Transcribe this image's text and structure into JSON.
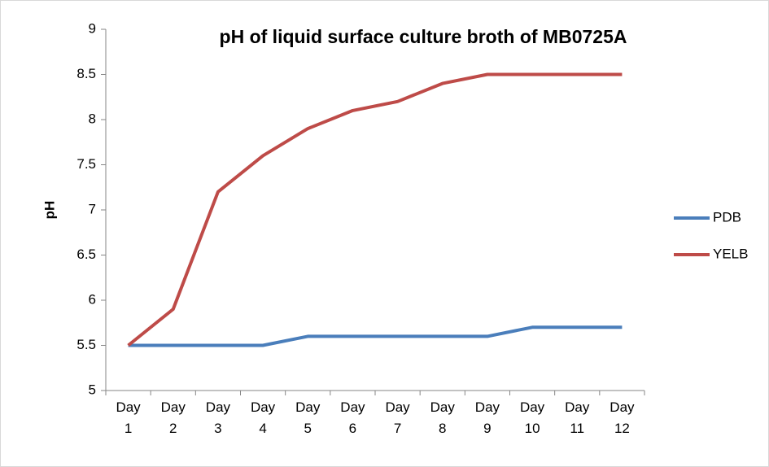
{
  "chart_data": {
    "type": "line",
    "title": "pH of liquid surface culture broth of MB0725A",
    "y_label": "pH",
    "categories": [
      "Day 1",
      "Day 2",
      "Day 3",
      "Day 4",
      "Day 5",
      "Day 6",
      "Day 7",
      "Day 8",
      "Day 9",
      "Day 10",
      "Day 11",
      "Day 12"
    ],
    "series": [
      {
        "name": "PDB",
        "color": "#4a7ebb",
        "values": [
          5.5,
          5.5,
          5.5,
          5.5,
          5.6,
          5.6,
          5.6,
          5.6,
          5.6,
          5.7,
          5.7,
          5.7
        ]
      },
      {
        "name": "YELB",
        "color": "#be4b48",
        "values": [
          5.5,
          5.9,
          7.2,
          7.6,
          7.9,
          8.1,
          8.2,
          8.4,
          8.5,
          8.5,
          8.5,
          8.5
        ]
      }
    ],
    "ylim": [
      5,
      9
    ],
    "yticks": [
      5,
      5.5,
      6,
      6.5,
      7,
      7.5,
      8,
      8.5,
      9
    ],
    "grid": false,
    "legend": "right"
  }
}
